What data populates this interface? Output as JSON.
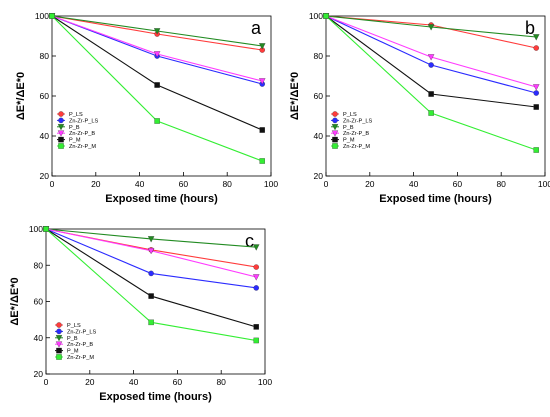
{
  "figure": {
    "series_colors": {
      "P_LS": "#ff3b3b",
      "Zn-Zr-P_LS": "#2b2bff",
      "P_B": "#228b22",
      "Zn-Zr-P_B": "#ff3bff",
      "P_M": "#111111",
      "Zn-Zr-P_M": "#33ee33"
    },
    "marker_shapes": {
      "P_LS": "circle",
      "Zn-Zr-P_LS": "circle",
      "P_B": "triangle-down",
      "Zn-Zr-P_B": "triangle-down",
      "P_M": "square",
      "Zn-Zr-P_M": "square"
    }
  },
  "chart_data": [
    {
      "panel_label": "a",
      "type": "line",
      "xlabel": "Exposed time (hours)",
      "ylabel": "ΔE*/ΔE*0",
      "xlim": [
        0,
        100
      ],
      "ylim": [
        20,
        100
      ],
      "xticks": [
        0,
        20,
        40,
        60,
        80,
        100
      ],
      "yticks": [
        20,
        40,
        60,
        80,
        100
      ],
      "grid": false,
      "legend_position": "lower-left",
      "x": [
        0,
        48,
        96
      ],
      "series": [
        {
          "name": "P_LS",
          "values": [
            100,
            91,
            83
          ]
        },
        {
          "name": "Zn-Zr-P_LS",
          "values": [
            100,
            80,
            66
          ]
        },
        {
          "name": "P_B",
          "values": [
            100,
            92.5,
            85
          ]
        },
        {
          "name": "Zn-Zr-P_B",
          "values": [
            100,
            81,
            67.5
          ]
        },
        {
          "name": "P_M",
          "values": [
            100,
            65.5,
            43
          ]
        },
        {
          "name": "Zn-Zr-P_M",
          "values": [
            100,
            47.5,
            27.5
          ]
        }
      ]
    },
    {
      "panel_label": "b",
      "type": "line",
      "xlabel": "Exposed time (hours)",
      "ylabel": "ΔE*/ΔE*0",
      "xlim": [
        0,
        100
      ],
      "ylim": [
        20,
        100
      ],
      "xticks": [
        0,
        20,
        40,
        60,
        80,
        100
      ],
      "yticks": [
        20,
        40,
        60,
        80,
        100
      ],
      "grid": false,
      "legend_position": "lower-left",
      "x": [
        0,
        48,
        96
      ],
      "series": [
        {
          "name": "P_LS",
          "values": [
            100,
            95.5,
            84
          ]
        },
        {
          "name": "Zn-Zr-P_LS",
          "values": [
            100,
            75.5,
            61.5
          ]
        },
        {
          "name": "P_B",
          "values": [
            100,
            94.5,
            89.5
          ]
        },
        {
          "name": "Zn-Zr-P_B",
          "values": [
            100,
            79.5,
            64.5
          ]
        },
        {
          "name": "P_M",
          "values": [
            100,
            61,
            54.5
          ]
        },
        {
          "name": "Zn-Zr-P_M",
          "values": [
            100,
            51.5,
            33
          ]
        }
      ]
    },
    {
      "panel_label": "c",
      "type": "line",
      "xlabel": "Exposed time (hours)",
      "ylabel": "ΔE*/ΔE*0",
      "xlim": [
        0,
        100
      ],
      "ylim": [
        20,
        100
      ],
      "xticks": [
        0,
        20,
        40,
        60,
        80,
        100
      ],
      "yticks": [
        20,
        40,
        60,
        80,
        100
      ],
      "grid": false,
      "legend_position": "lower-left",
      "x": [
        0,
        48,
        96
      ],
      "series": [
        {
          "name": "P_LS",
          "values": [
            100,
            88.5,
            79
          ]
        },
        {
          "name": "Zn-Zr-P_LS",
          "values": [
            100,
            75.5,
            67.5
          ]
        },
        {
          "name": "P_B",
          "values": [
            100,
            94.5,
            90
          ]
        },
        {
          "name": "Zn-Zr-P_B",
          "values": [
            100,
            88,
            73.5
          ]
        },
        {
          "name": "P_M",
          "values": [
            100,
            63,
            46
          ]
        },
        {
          "name": "Zn-Zr-P_M",
          "values": [
            100,
            48.5,
            38.5
          ]
        }
      ]
    }
  ]
}
